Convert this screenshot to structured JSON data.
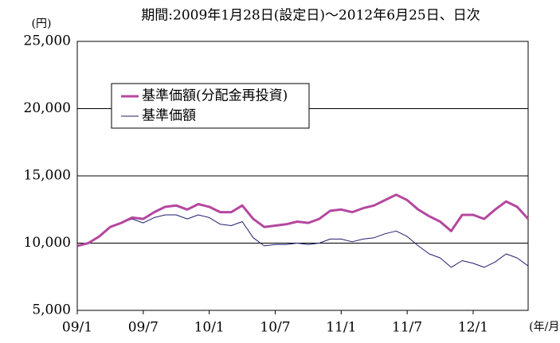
{
  "chart_data": {
    "type": "line",
    "title": "期間:2009年1月28日(設定日)～2012年6月25日、日次",
    "y_label": "(円)",
    "x_label": "(年/月)",
    "x": [
      "09/1",
      "09/2",
      "09/3",
      "09/4",
      "09/5",
      "09/6",
      "09/7",
      "09/8",
      "09/9",
      "09/10",
      "09/11",
      "09/12",
      "10/1",
      "10/2",
      "10/3",
      "10/4",
      "10/5",
      "10/6",
      "10/7",
      "10/8",
      "10/9",
      "10/10",
      "10/11",
      "10/12",
      "11/1",
      "11/2",
      "11/3",
      "11/4",
      "11/5",
      "11/6",
      "11/7",
      "11/8",
      "11/9",
      "11/10",
      "11/11",
      "11/12",
      "12/1",
      "12/2",
      "12/3",
      "12/4",
      "12/5",
      "12/6"
    ],
    "xticks": [
      "09/1",
      "09/7",
      "10/1",
      "10/7",
      "11/1",
      "11/7",
      "12/1"
    ],
    "ylim": [
      5000,
      25000
    ],
    "yticks": [
      {
        "value": 5000,
        "label": "5,000"
      },
      {
        "value": 10000,
        "label": "10,000"
      },
      {
        "value": 15000,
        "label": "15,000"
      },
      {
        "value": 20000,
        "label": "20,000"
      },
      {
        "value": 25000,
        "label": "25,000"
      }
    ],
    "grid": true,
    "legend": "upper left",
    "series": [
      {
        "name": "基準価額(分配金再投資)",
        "color": "#b4479f",
        "width": 3,
        "values": [
          9800,
          10000,
          10500,
          11200,
          11500,
          11900,
          11800,
          12300,
          12700,
          12800,
          12500,
          12900,
          12700,
          12300,
          12300,
          12800,
          11800,
          11200,
          11300,
          11400,
          11600,
          11500,
          11800,
          12400,
          12500,
          12300,
          12600,
          12800,
          13200,
          13600,
          13200,
          12500,
          12000,
          11600,
          10900,
          12100,
          12100,
          11800,
          12500,
          13100,
          12700,
          11800
        ]
      },
      {
        "name": "基準価額",
        "color": "#1f1f6e",
        "width": 1,
        "values": [
          9800,
          10000,
          10500,
          11200,
          11500,
          11800,
          11500,
          11900,
          12100,
          12100,
          11800,
          12100,
          11900,
          11400,
          11300,
          11600,
          10400,
          9800,
          9900,
          9900,
          10000,
          9900,
          10000,
          10300,
          10300,
          10100,
          10300,
          10400,
          10700,
          10900,
          10500,
          9800,
          9200,
          8900,
          8200,
          8700,
          8500,
          8200,
          8600,
          9200,
          8900,
          8300
        ]
      }
    ]
  }
}
